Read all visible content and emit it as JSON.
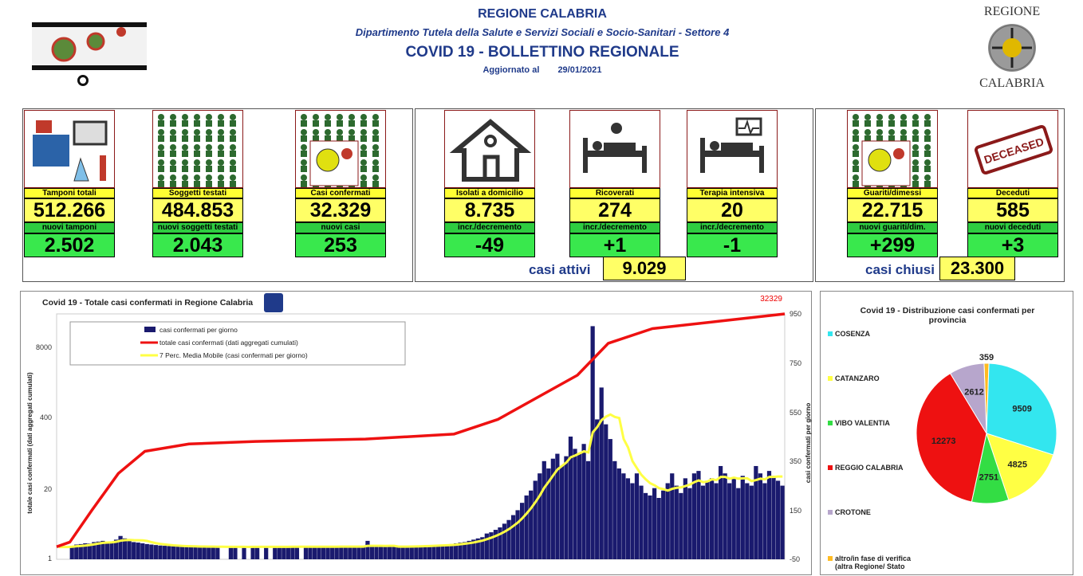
{
  "header": {
    "region": "REGIONE CALABRIA",
    "department": "Dipartimento Tutela della Salute e Servizi Sociali e Socio-Sanitari - Settore 4",
    "title": "COVID 19 - BOLLETTINO REGIONALE",
    "updated_label": "Aggiornato al",
    "updated_date": "29/01/2021",
    "logo_top": "REGIONE",
    "logo_bottom": "CALABRIA"
  },
  "cards": [
    {
      "label": "Tamponi totali",
      "value": "512.266",
      "sub_label": "nuovi tamponi",
      "sub_value": "2.502",
      "icon": "lab-icon"
    },
    {
      "label": "Soggetti testati",
      "value": "484.853",
      "sub_label": "nuovi soggetti testati",
      "sub_value": "2.043",
      "icon": "people-grid-icon"
    },
    {
      "label": "Casi confermati",
      "value": "32.329",
      "sub_label": "nuovi casi",
      "sub_value": "253",
      "icon": "virus-person-icon"
    },
    {
      "label": "Isolati a domicilio",
      "value": "8.735",
      "sub_label": "incr./decremento",
      "sub_value": "-49",
      "icon": "house-icon"
    },
    {
      "label": "Ricoverati",
      "value": "274",
      "sub_label": "incr./decremento",
      "sub_value": "+1",
      "icon": "hospital-bed-icon"
    },
    {
      "label": "Terapia intensiva",
      "value": "20",
      "sub_label": "incr./decremento",
      "sub_value": "-1",
      "icon": "icu-bed-icon"
    },
    {
      "label": "Guariti/dimessi",
      "value": "22.715",
      "sub_label": "nuovi guariti/dim.",
      "sub_value": "+299",
      "icon": "recovered-person-icon"
    },
    {
      "label": "Deceduti",
      "value": "585",
      "sub_label": "nuovi deceduti",
      "sub_value": "+3",
      "icon": "deceased-stamp-icon"
    }
  ],
  "summary": {
    "active_label": "casi attivi",
    "active_value": "9.029",
    "closed_label": "casi chiusi",
    "closed_value": "23.300",
    "deceased_stamp": "DECEASED"
  },
  "colors": {
    "yellow": "#ffff66",
    "green": "#39e84d",
    "navy": "#1a1a6e",
    "red": "#ee1111",
    "ma": "#ffff44"
  },
  "chart_data": [
    {
      "type": "bar+line",
      "title": "Covid 19 - Totale casi confermati in Regione Calabria",
      "ylabel_left": "totale casi confermati (dati aggregati cumulati)",
      "ylabel_right": "casi confermati per giorno",
      "left_ticks": [
        "8000",
        "400",
        "20",
        "1"
      ],
      "right_ticks": [
        "950",
        "750",
        "550",
        "350",
        "150",
        "-50"
      ],
      "last_total_label": "32329",
      "legend": [
        "casi confermati per giorno",
        "totale casi confermati (dati aggregati cumulati)",
        "7 Perc. Media Mobile (casi confermati per giorno)"
      ],
      "daily": [
        0,
        0,
        0,
        5,
        10,
        12,
        15,
        14,
        20,
        22,
        25,
        20,
        18,
        30,
        45,
        35,
        28,
        20,
        18,
        15,
        12,
        10,
        8,
        6,
        5,
        4,
        3,
        3,
        2,
        2,
        2,
        2,
        1,
        1,
        1,
        1,
        1,
        0,
        0,
        1,
        1,
        0,
        1,
        0,
        1,
        1,
        0,
        1,
        0,
        1,
        1,
        1,
        2,
        2,
        1,
        0,
        1,
        1,
        2,
        1,
        1,
        2,
        1,
        1,
        2,
        2,
        1,
        2,
        1,
        1,
        25,
        1,
        2,
        1,
        1,
        2,
        1,
        2,
        2,
        3,
        3,
        4,
        5,
        6,
        5,
        7,
        8,
        10,
        9,
        12,
        15,
        18,
        20,
        25,
        30,
        35,
        40,
        55,
        60,
        70,
        80,
        95,
        110,
        130,
        150,
        180,
        210,
        230,
        270,
        300,
        350,
        320,
        360,
        380,
        330,
        370,
        450,
        400,
        380,
        420,
        350,
        900,
        520,
        650,
        500,
        440,
        350,
        320,
        300,
        280,
        260,
        300,
        250,
        220,
        210,
        240,
        200,
        230,
        260,
        300,
        250,
        220,
        280,
        240,
        300,
        310,
        250,
        270,
        280,
        260,
        330,
        300,
        260,
        280,
        240,
        290,
        260,
        250,
        330,
        300,
        260,
        310,
        290,
        270,
        250
      ],
      "cumulative_points": [
        [
          0,
          1
        ],
        [
          3,
          20
        ],
        [
          8,
          150
        ],
        [
          14,
          300
        ],
        [
          20,
          390
        ],
        [
          30,
          420
        ],
        [
          45,
          430
        ],
        [
          70,
          440
        ],
        [
          90,
          460
        ],
        [
          100,
          520
        ],
        [
          110,
          620
        ],
        [
          118,
          700
        ],
        [
          125,
          830
        ],
        [
          135,
          890
        ],
        [
          150,
          920
        ],
        [
          165,
          950
        ]
      ]
    },
    {
      "type": "pie",
      "title": "Covid 19 - Distribuzione casi confermati per provincia",
      "categories": [
        "COSENZA",
        "CATANZARO",
        "VIBO VALENTIA",
        "REGGIO CALABRIA",
        "CROTONE",
        "altro/in fase di verifica (altra Regione/ Stato"
      ],
      "values": [
        9509,
        4825,
        2751,
        12273,
        2612,
        359
      ],
      "colors": [
        "#33e6ef",
        "#ffff44",
        "#33dd44",
        "#ee1111",
        "#b7a6cc",
        "#ffbb22"
      ]
    }
  ]
}
